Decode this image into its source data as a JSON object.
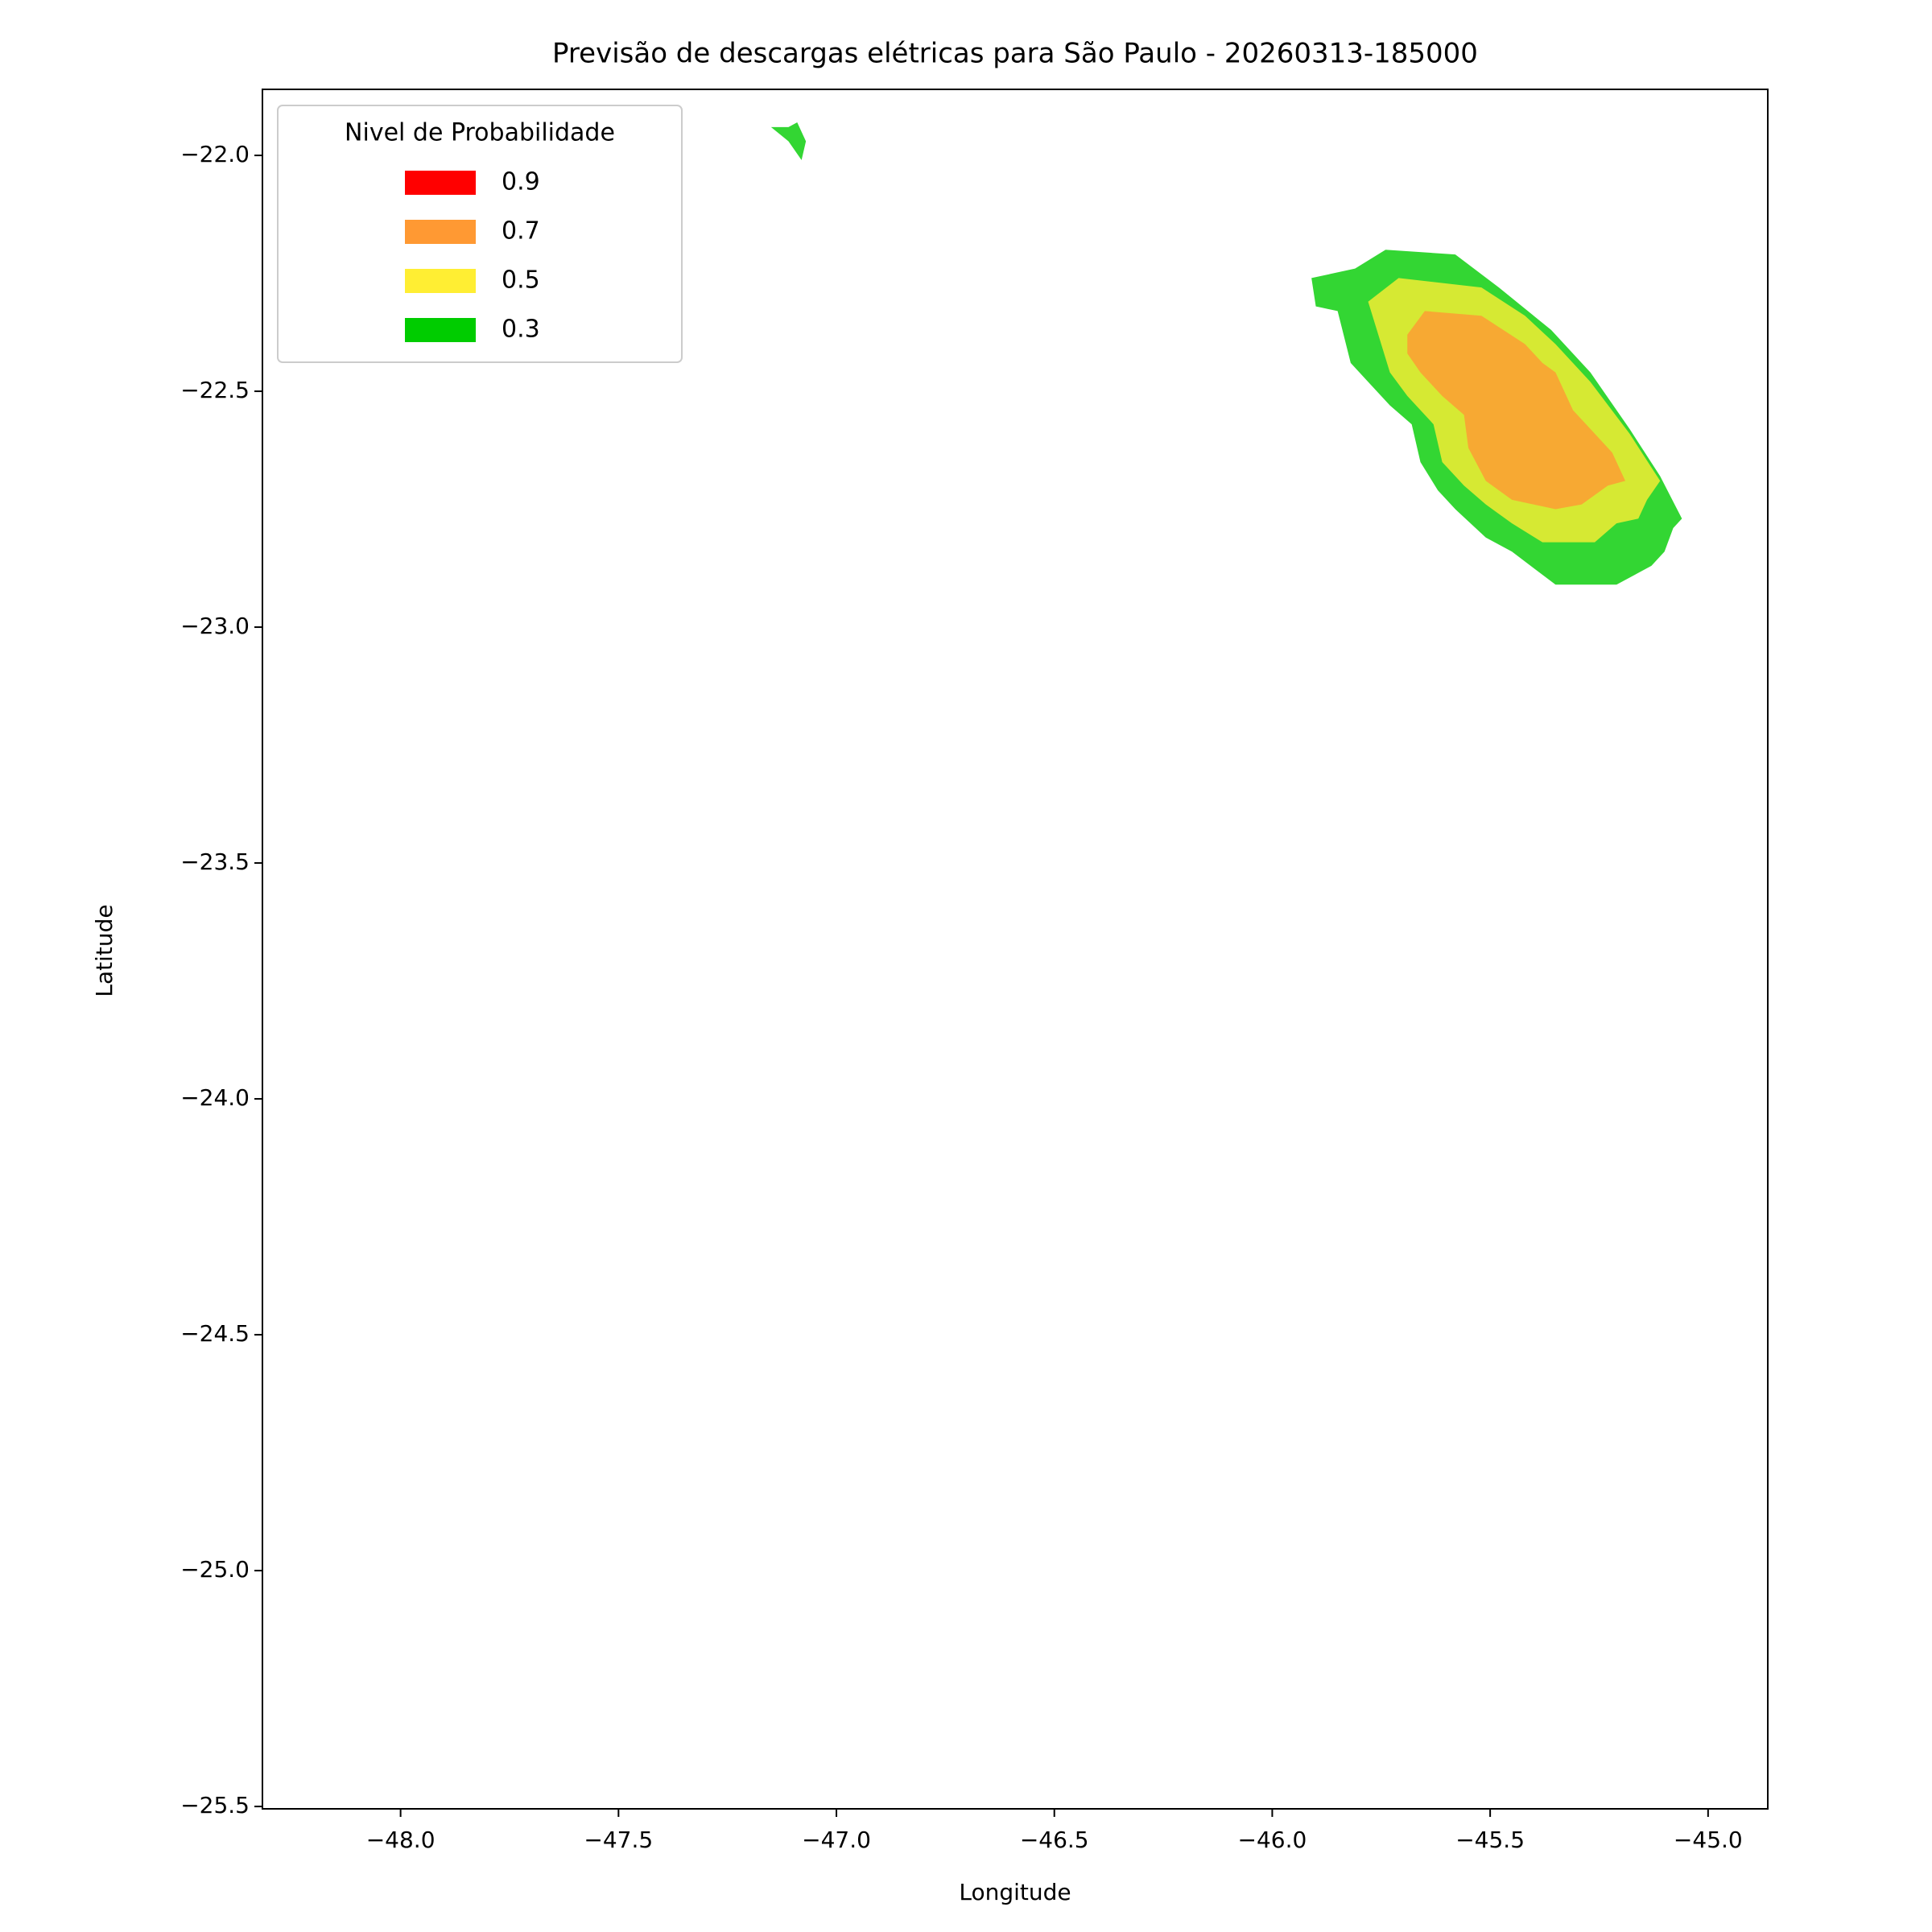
{
  "chart_data": {
    "type": "contour",
    "title": "Previsão de descargas elétricas para São Paulo - 20260313-185000",
    "x_label": "Longitude",
    "y_label": "Latitude",
    "legend_title": "Nivel de Probabilidade",
    "legend": "upper left",
    "xlim": [
      -48.317,
      -44.863
    ],
    "ylim": [
      -25.505,
      -21.86
    ],
    "xticks": [
      {
        "value": -48,
        "label": "−48.0"
      },
      {
        "value": -47.5,
        "label": "−47.5"
      },
      {
        "value": -47,
        "label": "−47.0"
      },
      {
        "value": -46.5,
        "label": "−46.5"
      },
      {
        "value": -46,
        "label": "−46.0"
      },
      {
        "value": -45.5,
        "label": "−45.5"
      },
      {
        "value": -45,
        "label": "−45.0"
      }
    ],
    "yticks": [
      {
        "value": -22,
        "label": "−22.0"
      },
      {
        "value": -22.5,
        "label": "−22.5"
      },
      {
        "value": -23,
        "label": "−23.0"
      },
      {
        "value": -23.5,
        "label": "−23.5"
      },
      {
        "value": -24,
        "label": "−24.0"
      },
      {
        "value": -24.5,
        "label": "−24.5"
      },
      {
        "value": -25,
        "label": "−25.0"
      },
      {
        "value": -25.5,
        "label": "−25.5"
      }
    ],
    "fill_opacity": 0.8,
    "series": [
      {
        "name": "0.9",
        "color": "#ff0000",
        "polygons": []
      },
      {
        "name": "0.7",
        "color": "#ff9933",
        "polygons": [
          {
            "lon": [
              -45.69,
              -45.65,
              -45.52,
              -45.42,
              -45.38,
              -45.35,
              -45.31,
              -45.27,
              -45.22,
              -45.19,
              -45.23,
              -45.29,
              -45.35,
              -45.45,
              -45.51,
              -45.55,
              -45.56,
              -45.61,
              -45.66,
              -45.69
            ],
            "lat": [
              -22.38,
              -22.33,
              -22.34,
              -22.4,
              -22.44,
              -22.46,
              -22.54,
              -22.58,
              -22.63,
              -22.69,
              -22.7,
              -22.74,
              -22.75,
              -22.73,
              -22.69,
              -22.62,
              -22.55,
              -22.51,
              -22.46,
              -22.42
            ]
          }
        ]
      },
      {
        "name": "0.5",
        "color": "#ffee33",
        "polygons": [
          {
            "lon": [
              -45.78,
              -45.71,
              -45.52,
              -45.42,
              -45.35,
              -45.27,
              -45.18,
              -45.11,
              -45.14,
              -45.16,
              -45.21,
              -45.26,
              -45.38,
              -45.45,
              -45.51,
              -45.56,
              -45.61,
              -45.63,
              -45.69,
              -45.73
            ],
            "lat": [
              -22.31,
              -22.26,
              -22.28,
              -22.34,
              -22.4,
              -22.48,
              -22.59,
              -22.69,
              -22.73,
              -22.77,
              -22.78,
              -22.82,
              -22.82,
              -22.78,
              -22.74,
              -22.7,
              -22.65,
              -22.57,
              -22.51,
              -22.46
            ]
          }
        ]
      },
      {
        "name": "0.3",
        "color": "#00cc00",
        "polygons": [
          {
            "lon": [
              -45.91,
              -45.81,
              -45.74,
              -45.58,
              -45.48,
              -45.36,
              -45.27,
              -45.18,
              -45.11,
              -45.06,
              -45.08,
              -45.1,
              -45.13,
              -45.21,
              -45.35,
              -45.45,
              -45.51,
              -45.58,
              -45.62,
              -45.66,
              -45.68,
              -45.73,
              -45.78,
              -45.82,
              -45.85,
              -45.9
            ],
            "lat": [
              -22.26,
              -22.24,
              -22.2,
              -22.21,
              -22.28,
              -22.37,
              -22.46,
              -22.58,
              -22.68,
              -22.77,
              -22.79,
              -22.84,
              -22.87,
              -22.91,
              -22.91,
              -22.84,
              -22.81,
              -22.75,
              -22.71,
              -22.65,
              -22.57,
              -22.53,
              -22.48,
              -22.44,
              -22.33,
              -22.32
            ]
          },
          {
            "lon": [
              -47.15,
              -47.11,
              -47.09,
              -47.07,
              -47.08,
              -47.11
            ],
            "lat": [
              -21.94,
              -21.94,
              -21.93,
              -21.97,
              -22.01,
              -21.97
            ]
          }
        ]
      }
    ]
  }
}
